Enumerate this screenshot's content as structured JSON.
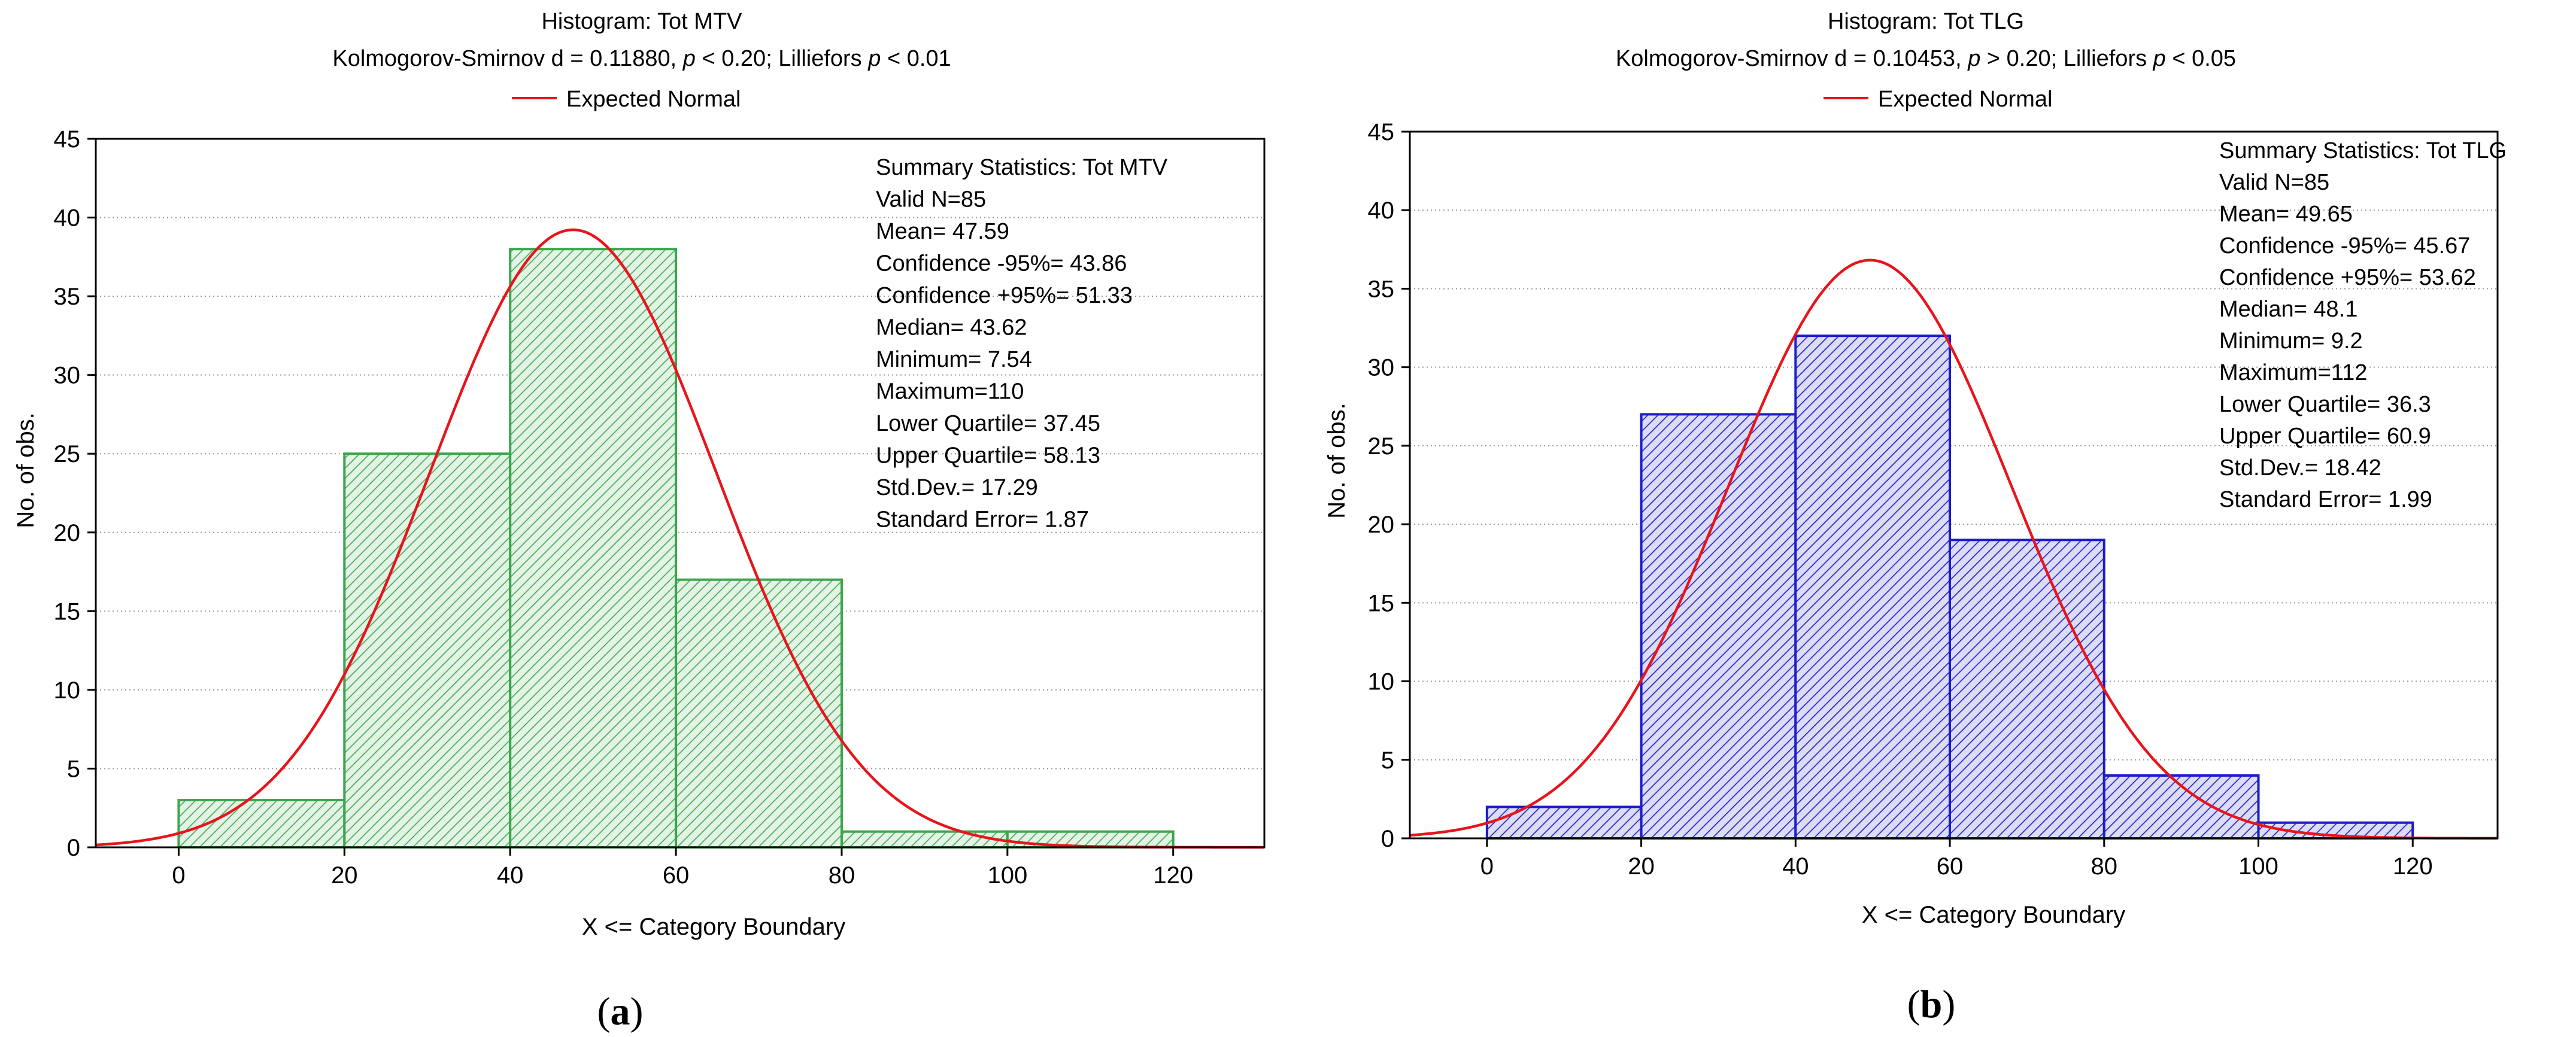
{
  "chart_data": [
    {
      "type": "bar",
      "panel_label": "a",
      "title": "Histogram: Tot MTV",
      "subtitle_parts": [
        "Kolmogorov-Smirnov d = 0.11880, ",
        "p",
        " < 0.20; Lilliefors ",
        "p",
        " < 0.01"
      ],
      "legend_label": "Expected Normal",
      "xlabel": "X <= Category Boundary",
      "ylabel": "No. of obs.",
      "xlim": [
        -10,
        131
      ],
      "ylim": [
        0,
        45
      ],
      "xticks": [
        0,
        20,
        40,
        60,
        80,
        100,
        120
      ],
      "yticks": [
        0,
        5,
        10,
        15,
        20,
        25,
        30,
        35,
        40,
        45
      ],
      "bins": [
        [
          0,
          20
        ],
        [
          20,
          40
        ],
        [
          40,
          60
        ],
        [
          60,
          80
        ],
        [
          80,
          100
        ],
        [
          100,
          120
        ]
      ],
      "values": [
        3,
        25,
        38,
        17,
        1,
        1
      ],
      "normal": {
        "mean": 47.59,
        "sd": 17.29,
        "n": 85,
        "width": 20
      },
      "summary": [
        "Summary Statistics: Tot MTV",
        "Valid N=85",
        "Mean= 47.59",
        "Confidence -95%= 43.86",
        "Confidence +95%= 51.33",
        "Median= 43.62",
        "Minimum=  7.54",
        "Maximum=110",
        "Lower Quartile= 37.45",
        "Upper Quartile= 58.13",
        "Std.Dev.= 17.29",
        "Standard Error= 1.87"
      ],
      "colors": {
        "bar_stroke": "#3aa64c",
        "bar_fill": "#e3f3e5",
        "hatch": "#4cae5c",
        "curve": "#e8141c"
      }
    },
    {
      "type": "bar",
      "panel_label": "b",
      "title": "Histogram: Tot TLG",
      "subtitle_parts": [
        "Kolmogorov-Smirnov d = 0.10453, ",
        "p",
        " > 0.20; Lilliefors ",
        "p",
        " < 0.05"
      ],
      "legend_label": "Expected Normal",
      "xlabel": "X <= Category Boundary",
      "ylabel": "No. of obs.",
      "xlim": [
        -10,
        131
      ],
      "ylim": [
        0,
        45
      ],
      "xticks": [
        0,
        20,
        40,
        60,
        80,
        100,
        120
      ],
      "yticks": [
        0,
        5,
        10,
        15,
        20,
        25,
        30,
        35,
        40,
        45
      ],
      "bins": [
        [
          0,
          20
        ],
        [
          20,
          40
        ],
        [
          40,
          60
        ],
        [
          60,
          80
        ],
        [
          80,
          100
        ],
        [
          100,
          120
        ]
      ],
      "values": [
        2,
        27,
        32,
        19,
        4,
        1
      ],
      "normal": {
        "mean": 49.65,
        "sd": 18.42,
        "n": 85,
        "width": 20
      },
      "summary": [
        "Summary Statistics: Tot TLG",
        "Valid N=85",
        "Mean= 49.65",
        "Confidence -95%= 45.67",
        "Confidence +95%= 53.62",
        "Median= 48.1",
        "Minimum=  9.2",
        "Maximum=112",
        "Lower Quartile= 36.3",
        "Upper Quartile= 60.9",
        "Std.Dev.= 18.42",
        "Standard Error=  1.99"
      ],
      "colors": {
        "bar_stroke": "#1c1cc8",
        "bar_fill": "#dcdcf6",
        "hatch": "#2a2ad0",
        "curve": "#e8141c"
      }
    }
  ]
}
